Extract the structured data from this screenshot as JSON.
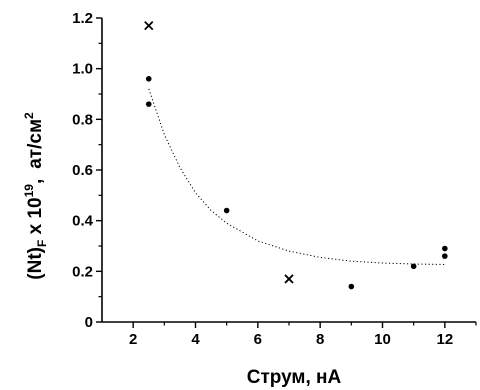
{
  "chart_data": {
    "type": "scatter",
    "title": "",
    "xlabel": "Струм,  нА",
    "ylabel": {
      "prefix": "(Nt)",
      "subscript": "F",
      "middle": " x 10",
      "superscript": "19",
      "comma": ",",
      "units": "ат/см",
      "units_superscript": "2"
    },
    "xlim": [
      1,
      13
    ],
    "ylim": [
      0,
      1.2
    ],
    "x_ticks": [
      2,
      4,
      6,
      8,
      10,
      12
    ],
    "x_tick_labels": [
      "2",
      "4",
      "6",
      "8",
      "10",
      "12"
    ],
    "y_ticks": [
      0,
      0.2,
      0.4,
      0.6,
      0.8,
      1.0,
      1.2
    ],
    "y_tick_labels": [
      "0",
      "0.2",
      "0.4",
      "0.6",
      "0.8",
      "1.0",
      "1.2"
    ],
    "grid": false,
    "legend": "none",
    "series": [
      {
        "marker": "dot",
        "points": [
          {
            "x": 2.5,
            "y": 0.96
          },
          {
            "x": 2.5,
            "y": 0.86
          },
          {
            "x": 5.0,
            "y": 0.44
          },
          {
            "x": 9.0,
            "y": 0.14
          },
          {
            "x": 11.0,
            "y": 0.22
          },
          {
            "x": 12.0,
            "y": 0.29
          },
          {
            "x": 12.0,
            "y": 0.26
          }
        ]
      },
      {
        "marker": "cross",
        "points": [
          {
            "x": 2.5,
            "y": 1.17
          },
          {
            "x": 7.0,
            "y": 0.17
          }
        ]
      },
      {
        "marker": "dotted-line",
        "fit": "exponential decay",
        "points": [
          {
            "x": 2.5,
            "y": 0.92
          },
          {
            "x": 3.0,
            "y": 0.74
          },
          {
            "x": 3.5,
            "y": 0.61
          },
          {
            "x": 4.0,
            "y": 0.51
          },
          {
            "x": 4.5,
            "y": 0.44
          },
          {
            "x": 5.0,
            "y": 0.39
          },
          {
            "x": 6.0,
            "y": 0.32
          },
          {
            "x": 7.0,
            "y": 0.28
          },
          {
            "x": 8.0,
            "y": 0.255
          },
          {
            "x": 9.0,
            "y": 0.24
          },
          {
            "x": 10.0,
            "y": 0.233
          },
          {
            "x": 11.0,
            "y": 0.229
          },
          {
            "x": 12.0,
            "y": 0.227
          }
        ]
      }
    ],
    "colors": {
      "axis": "#000000",
      "markers": "#000000"
    }
  }
}
